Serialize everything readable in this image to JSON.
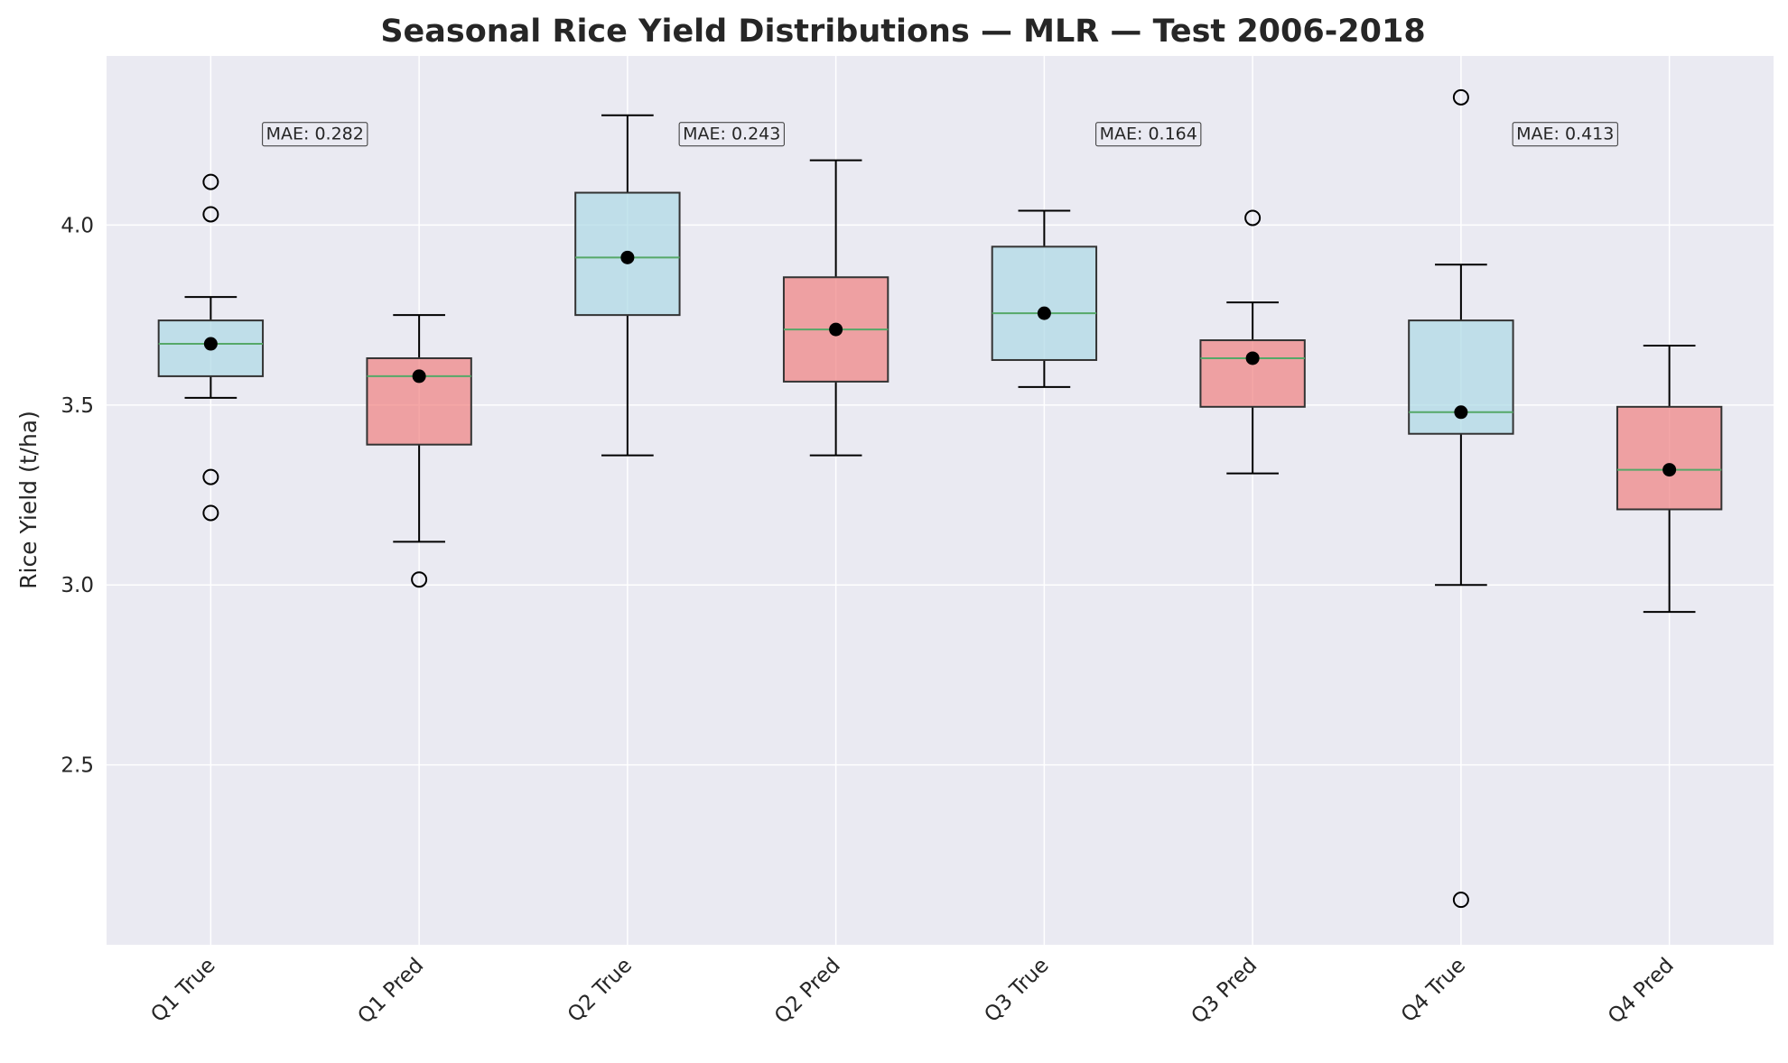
{
  "chart_data": {
    "type": "box",
    "title": "Seasonal Rice Yield Distributions — MLR — Test 2006-2018",
    "xlabel": "",
    "ylabel": "Rice Yield (t/ha)",
    "ylim": [
      2.0,
      4.47
    ],
    "yticks": [
      "2.5",
      "3.0",
      "3.5",
      "4.0"
    ],
    "grid": true,
    "colors": {
      "background": "#eaeaf2",
      "grid": "#ffffff",
      "true_box": "#add8e6",
      "pred_box": "#f08080",
      "box_edge": "#333333",
      "median": "#55a868",
      "mean_marker": "#000000"
    },
    "boxes": [
      {
        "label": "Q1 True",
        "kind": "true",
        "whislo": 3.52,
        "q1": 3.58,
        "median": 3.67,
        "q3": 3.735,
        "whishi": 3.8,
        "mean": 3.67,
        "outliers": [
          4.12,
          4.03,
          3.3,
          3.2
        ]
      },
      {
        "label": "Q1 Pred",
        "kind": "pred",
        "whislo": 3.12,
        "q1": 3.39,
        "median": 3.58,
        "q3": 3.63,
        "whishi": 3.75,
        "mean": 3.58,
        "outliers": [
          3.015
        ]
      },
      {
        "label": "Q2 True",
        "kind": "true",
        "whislo": 3.36,
        "q1": 3.75,
        "median": 3.91,
        "q3": 4.09,
        "whishi": 4.305,
        "mean": 3.91,
        "outliers": []
      },
      {
        "label": "Q2 Pred",
        "kind": "pred",
        "whislo": 3.36,
        "q1": 3.565,
        "median": 3.71,
        "q3": 3.855,
        "whishi": 4.18,
        "mean": 3.71,
        "outliers": []
      },
      {
        "label": "Q3 True",
        "kind": "true",
        "whislo": 3.55,
        "q1": 3.625,
        "median": 3.755,
        "q3": 3.94,
        "whishi": 4.04,
        "mean": 3.755,
        "outliers": []
      },
      {
        "label": "Q3 Pred",
        "kind": "pred",
        "whislo": 3.31,
        "q1": 3.495,
        "median": 3.63,
        "q3": 3.68,
        "whishi": 3.785,
        "mean": 3.63,
        "outliers": [
          4.02
        ]
      },
      {
        "label": "Q4 True",
        "kind": "true",
        "whislo": 3.0,
        "q1": 3.42,
        "median": 3.48,
        "q3": 3.735,
        "whishi": 3.89,
        "mean": 3.48,
        "outliers": [
          4.355,
          2.125
        ]
      },
      {
        "label": "Q4 Pred",
        "kind": "pred",
        "whislo": 2.925,
        "q1": 3.21,
        "median": 3.32,
        "q3": 3.495,
        "whishi": 3.665,
        "mean": 3.32,
        "outliers": []
      }
    ],
    "annotations": [
      {
        "text": "MAE: 0.282",
        "between": [
          0,
          1
        ],
        "y": 4.255
      },
      {
        "text": "MAE: 0.243",
        "between": [
          2,
          3
        ],
        "y": 4.255
      },
      {
        "text": "MAE: 0.164",
        "between": [
          4,
          5
        ],
        "y": 4.255
      },
      {
        "text": "MAE: 0.413",
        "between": [
          6,
          7
        ],
        "y": 4.255
      }
    ]
  }
}
